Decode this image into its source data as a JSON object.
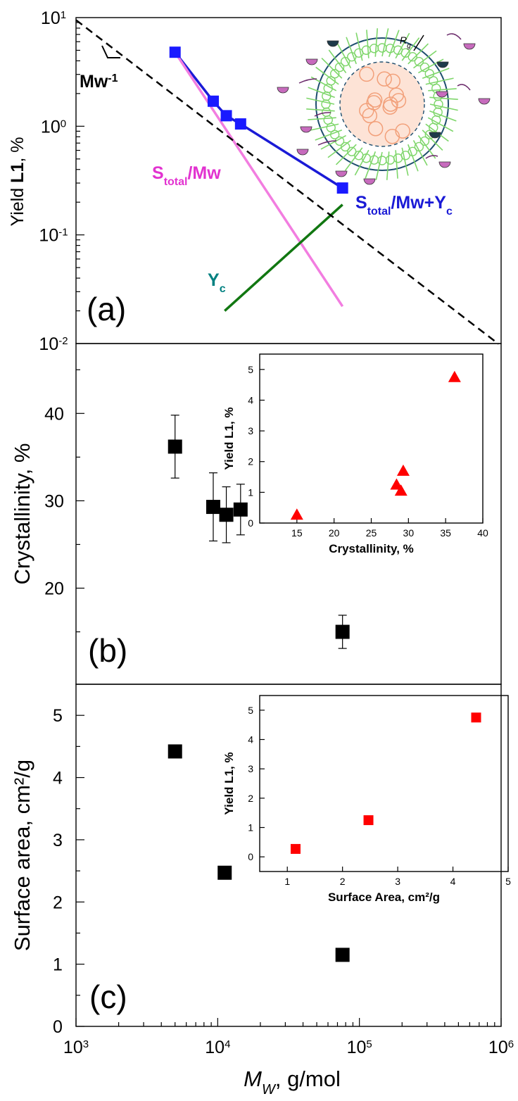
{
  "chart_data": [
    {
      "panel": "(a)",
      "type": "line",
      "xscale": "log",
      "yscale": "log",
      "xlim": [
        1000,
        1000000
      ],
      "ylim": [
        0.01,
        10
      ],
      "ylabel": "Yield L1, %",
      "yticks": [
        {
          "base": "10",
          "exp": "1",
          "v": 10
        },
        {
          "base": "10",
          "exp": "0",
          "v": 1
        },
        {
          "base": "10",
          "exp": "-1",
          "v": 0.1
        },
        {
          "base": "10",
          "exp": "-2",
          "v": 0.01
        }
      ],
      "series": [
        {
          "name": "data",
          "style": "blue-square-markers",
          "color": "#1a1aff",
          "points": [
            [
              5000,
              4.8
            ],
            [
              9300,
              1.7
            ],
            [
              11500,
              1.25
            ],
            [
              14500,
              1.05
            ],
            [
              76000,
              0.27
            ]
          ]
        },
        {
          "name": "S_total/Mw + Y_c",
          "style": "line",
          "color": "#1a1ad6",
          "points": [
            [
              5000,
              4.8
            ],
            [
              9300,
              1.7
            ],
            [
              11500,
              1.25
            ],
            [
              14500,
              1.05
            ],
            [
              76000,
              0.27
            ]
          ]
        },
        {
          "name": "S_total/Mw",
          "style": "line",
          "color": "#f27de0",
          "points": [
            [
              5000,
              4.8
            ],
            [
              76000,
              0.022
            ]
          ]
        },
        {
          "name": "Y_c",
          "style": "line",
          "color": "#117711",
          "points": [
            [
              11200,
              0.02
            ],
            [
              76000,
              0.19
            ]
          ]
        },
        {
          "name": "Mw^-1",
          "style": "dashed-line",
          "color": "#000000",
          "points": [
            [
              1000,
              9.5
            ],
            [
              960000,
              0.0099
            ]
          ]
        }
      ],
      "annotations": {
        "slope": {
          "base": "Mw",
          "exp": "-1"
        },
        "stotal_mw": {
          "main": "S",
          "sub": "total",
          "rest": "/Mw"
        },
        "stotal_mw_yc": {
          "main": "S",
          "sub": "total",
          "rest": "/Mw+Y",
          "sub2": "c"
        },
        "yc": {
          "main": "Y",
          "sub": "c"
        },
        "rg": {
          "main": "R",
          "sub": "g"
        }
      }
    },
    {
      "panel": "(b)",
      "type": "scatter",
      "xscale": "log",
      "xlim": [
        1000,
        1000000
      ],
      "ylim": [
        9,
        48
      ],
      "ylabel": "Crystallinity, %",
      "yticks": [
        20,
        30,
        40
      ],
      "points": [
        {
          "x": 5000,
          "y": 36.2,
          "err": 3.6
        },
        {
          "x": 9300,
          "y": 29.3,
          "err": 3.9
        },
        {
          "x": 11500,
          "y": 28.4,
          "err": 3.2
        },
        {
          "x": 14500,
          "y": 29.0,
          "err": 2.9
        },
        {
          "x": 76000,
          "y": 15.0,
          "err": 1.9
        }
      ],
      "inset": {
        "type": "scatter",
        "xlabel": "Crystallinity, %",
        "ylabel": "Yield L1, %",
        "xlim": [
          10,
          40
        ],
        "ylim": [
          0,
          5.5
        ],
        "xticks": [
          15,
          20,
          25,
          30,
          35,
          40
        ],
        "yticks": [
          0,
          1,
          2,
          3,
          4,
          5
        ],
        "color": "#ff0000",
        "marker": "triangle",
        "points": [
          [
            15.0,
            0.27
          ],
          [
            28.4,
            1.25
          ],
          [
            29.0,
            1.05
          ],
          [
            29.3,
            1.7
          ],
          [
            36.2,
            4.75
          ]
        ]
      }
    },
    {
      "panel": "(c)",
      "type": "scatter",
      "xscale": "log",
      "xlim": [
        1000,
        1000000
      ],
      "ylim": [
        0,
        5.5
      ],
      "ylabel": "Surface area, cm²/g",
      "xlabel": {
        "main": "M",
        "sub": "W",
        "rest": ", g/mol"
      },
      "yticks": [
        0,
        1,
        2,
        3,
        4,
        5
      ],
      "xticks": [
        {
          "base": "10",
          "exp": "3",
          "v": 1000
        },
        {
          "base": "10",
          "exp": "4",
          "v": 10000
        },
        {
          "base": "10",
          "exp": "5",
          "v": 100000
        },
        {
          "base": "10",
          "exp": "6",
          "v": 1000000
        }
      ],
      "points": [
        {
          "x": 5000,
          "y": 4.42
        },
        {
          "x": 11200,
          "y": 2.47,
          "err": 0.1
        },
        {
          "x": 76000,
          "y": 1.15
        }
      ],
      "inset": {
        "type": "scatter",
        "xlabel": "Surface Area, cm²/g",
        "ylabel": "Yield L1, %",
        "xlim": [
          0.5,
          5
        ],
        "ylim": [
          -0.5,
          5.5
        ],
        "xticks": [
          1,
          2,
          3,
          4,
          5
        ],
        "yticks": [
          0,
          1,
          2,
          3,
          4,
          5
        ],
        "color": "#ff0000",
        "marker": "square",
        "points": [
          [
            1.15,
            0.27
          ],
          [
            2.47,
            1.25
          ],
          [
            4.42,
            4.75
          ]
        ]
      }
    }
  ],
  "colors": {
    "data_blue": "#1a1aff",
    "fit_blue": "#1a1ad6",
    "pink": "#f27de0",
    "pink_text": "#e233d0",
    "green": "#117711",
    "teal_text": "#008080",
    "red": "#ff0000",
    "cluster_green": "#7ed66a",
    "cluster_orange": "#f2a07a",
    "cluster_ring": "#1e4e6e",
    "molecule_purple": "#c76bbd",
    "molecule_dark": "#1e3a4a"
  }
}
